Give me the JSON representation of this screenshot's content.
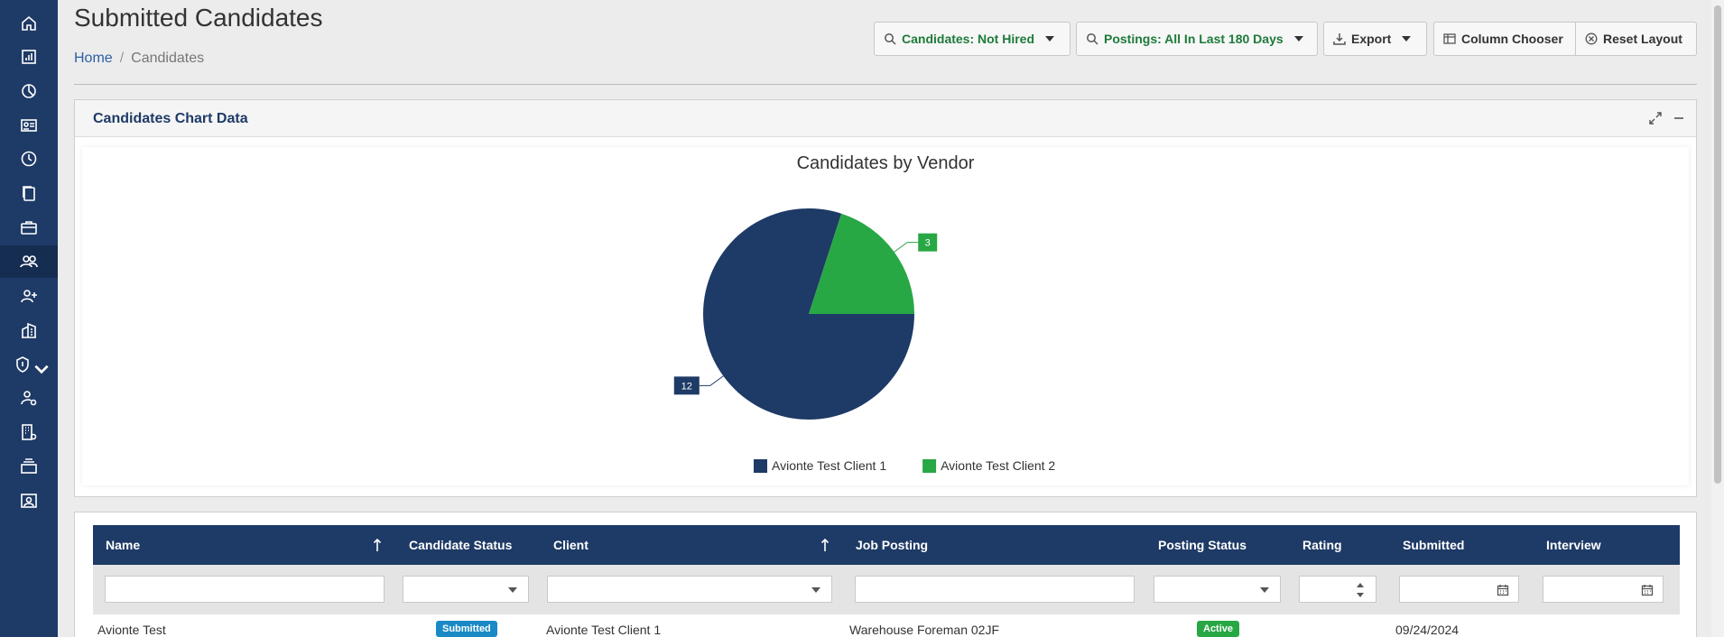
{
  "page": {
    "title": "Submitted Candidates",
    "breadcrumb": {
      "home": "Home",
      "separator": "/",
      "current": "Candidates"
    }
  },
  "toolbar": {
    "candidates_filter": "Candidates: Not Hired",
    "postings_filter": "Postings: All In Last 180 Days",
    "export": "Export",
    "column_chooser": "Column Chooser",
    "reset_layout": "Reset Layout"
  },
  "sidebar": {
    "items": [
      {
        "icon": "home-icon"
      },
      {
        "icon": "report-icon"
      },
      {
        "icon": "pie-chart-icon"
      },
      {
        "icon": "id-card-icon"
      },
      {
        "icon": "clock-icon"
      },
      {
        "icon": "documents-icon"
      },
      {
        "icon": "briefcase-icon"
      },
      {
        "icon": "users-icon",
        "active": true
      },
      {
        "icon": "add-user-icon"
      },
      {
        "icon": "building-icon"
      },
      {
        "icon": "shield-icon"
      },
      {
        "icon": "user-settings-icon"
      },
      {
        "icon": "building-settings-icon"
      },
      {
        "icon": "stack-icon"
      },
      {
        "icon": "contact-card-icon"
      }
    ]
  },
  "chart_panel": {
    "title": "Candidates Chart Data"
  },
  "chart_data": {
    "type": "pie",
    "title": "Candidates by Vendor",
    "labels": [
      "Avionte Test Client 1",
      "Avionte Test Client 2"
    ],
    "values": [
      12,
      3
    ],
    "colors": [
      "#1e3a66",
      "#28a745"
    ],
    "legend": "bottom"
  },
  "grid": {
    "columns": [
      "Name",
      "Candidate Status",
      "Client",
      "Job Posting",
      "Posting Status",
      "Rating",
      "Submitted",
      "Interview"
    ],
    "rows": [
      {
        "name": "Avionte Test",
        "candidate_status": "Submitted",
        "client": "Avionte Test Client 1",
        "job_posting": "Warehouse Foreman 02JF",
        "posting_status": "Active",
        "rating": "",
        "submitted": "09/24/2024",
        "interview": ""
      }
    ]
  },
  "colors": {
    "brand": "#1e3a66",
    "accent_green": "#28a745",
    "badge_blue": "#1a8ac6"
  }
}
